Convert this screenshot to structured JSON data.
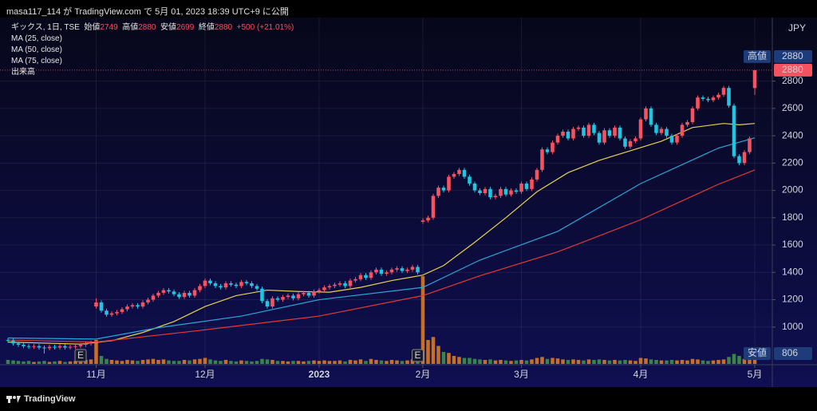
{
  "header": {
    "published": "masa117_114 が TradingView.com で 5月 01, 2023 18:39 UTC+9 に公開"
  },
  "footer": {
    "brand": "TradingView"
  },
  "chart_data": {
    "type": "candlestick",
    "symbol": "ギックス, 1日, TSE",
    "ohlc_labels": [
      "始値",
      "高値",
      "安値",
      "終値"
    ],
    "change_label": "+500 (+21.01%)",
    "indicator_labels": [
      "MA (25, close)",
      "MA (50, close)",
      "MA (75, close)",
      "出来高"
    ],
    "currency": "JPY",
    "up_color": "#f7525f",
    "down_color": "#22c5e0",
    "volume_up_color": "#e6801f",
    "volume_down_color": "#3f9a4a",
    "ylim": [
      730,
      3230
    ],
    "yticks": [
      1000,
      1200,
      1400,
      1600,
      1800,
      2000,
      2200,
      2400,
      2600,
      2800
    ],
    "xlim": [
      0,
      144
    ],
    "xticks": [
      {
        "value": 17,
        "label": "11月"
      },
      {
        "value": 38,
        "label": "12月"
      },
      {
        "value": 60,
        "label": "2023"
      },
      {
        "value": 80,
        "label": "2月"
      },
      {
        "value": 99,
        "label": "3月"
      },
      {
        "value": 122,
        "label": "4月"
      },
      {
        "value": 144,
        "label": "5月"
      }
    ],
    "grid": true,
    "high_marker": {
      "label": "高値",
      "value": 2880
    },
    "low_marker": {
      "label": "安値",
      "value": 806
    },
    "events": [
      {
        "x": 14,
        "label": "E"
      },
      {
        "x": 79,
        "label": "E"
      }
    ],
    "open": [
      905,
      900,
      880,
      870,
      860,
      855,
      860,
      850,
      845,
      855,
      850,
      860,
      850,
      855,
      860,
      870,
      880,
      1150,
      1180,
      1120,
      1090,
      1100,
      1110,
      1130,
      1150,
      1160,
      1150,
      1180,
      1200,
      1230,
      1250,
      1270,
      1260,
      1240,
      1220,
      1250,
      1230,
      1270,
      1300,
      1340,
      1320,
      1300,
      1290,
      1320,
      1310,
      1300,
      1330,
      1320,
      1300,
      1280,
      1190,
      1150,
      1210,
      1200,
      1220,
      1230,
      1210,
      1240,
      1250,
      1230,
      1260,
      1270,
      1290,
      1300,
      1310,
      1320,
      1300,
      1340,
      1350,
      1380,
      1360,
      1400,
      1420,
      1390,
      1400,
      1420,
      1430,
      1410,
      1420,
      1440,
      1770,
      1780,
      1800,
      1960,
      2020,
      2000,
      2100,
      2120,
      2150,
      2100,
      2050,
      2000,
      1980,
      2010,
      1950,
      1960,
      2010,
      1970,
      2000,
      1990,
      2050,
      2010,
      2080,
      2150,
      2300,
      2280,
      2350,
      2400,
      2430,
      2380,
      2450,
      2460,
      2400,
      2480,
      2420,
      2350,
      2440,
      2400,
      2460,
      2380,
      2320,
      2360,
      2380,
      2520,
      2600,
      2480,
      2420,
      2450,
      2400,
      2350,
      2400,
      2480,
      2500,
      2600,
      2680,
      2670,
      2660,
      2680,
      2700,
      2750,
      2620,
      2250,
      2200,
      2280,
      2749
    ],
    "high": [
      920,
      915,
      895,
      885,
      875,
      875,
      875,
      865,
      870,
      870,
      875,
      875,
      870,
      875,
      885,
      895,
      900,
      1210,
      1195,
      1135,
      1115,
      1125,
      1145,
      1165,
      1175,
      1175,
      1195,
      1215,
      1245,
      1265,
      1285,
      1285,
      1275,
      1255,
      1265,
      1265,
      1285,
      1315,
      1355,
      1355,
      1335,
      1315,
      1335,
      1335,
      1325,
      1345,
      1345,
      1335,
      1315,
      1295,
      1205,
      1225,
      1225,
      1235,
      1245,
      1245,
      1255,
      1265,
      1265,
      1275,
      1285,
      1305,
      1315,
      1325,
      1335,
      1335,
      1355,
      1365,
      1395,
      1395,
      1415,
      1435,
      1435,
      1415,
      1435,
      1445,
      1445,
      1435,
      1455,
      1455,
      1795,
      1815,
      1975,
      2035,
      2035,
      2115,
      2135,
      2165,
      2165,
      2115,
      2065,
      2015,
      2025,
      2025,
      1975,
      2025,
      2025,
      2015,
      2015,
      2065,
      2065,
      2095,
      2165,
      2315,
      2315,
      2365,
      2415,
      2445,
      2445,
      2465,
      2475,
      2475,
      2495,
      2495,
      2435,
      2455,
      2455,
      2475,
      2475,
      2395,
      2375,
      2395,
      2535,
      2615,
      2615,
      2495,
      2465,
      2465,
      2415,
      2415,
      2495,
      2515,
      2615,
      2695,
      2695,
      2685,
      2695,
      2715,
      2765,
      2765,
      2635,
      2265,
      2295,
      2395,
      2880
    ],
    "low": [
      885,
      865,
      855,
      845,
      840,
      840,
      835,
      806,
      830,
      835,
      835,
      835,
      835,
      840,
      845,
      855,
      865,
      1135,
      1105,
      1075,
      1075,
      1085,
      1095,
      1115,
      1135,
      1135,
      1135,
      1165,
      1185,
      1215,
      1235,
      1245,
      1225,
      1205,
      1205,
      1215,
      1215,
      1255,
      1285,
      1305,
      1285,
      1275,
      1275,
      1295,
      1285,
      1285,
      1305,
      1285,
      1265,
      1175,
      1135,
      1135,
      1185,
      1185,
      1205,
      1195,
      1195,
      1225,
      1215,
      1215,
      1245,
      1255,
      1275,
      1285,
      1295,
      1285,
      1285,
      1325,
      1335,
      1345,
      1345,
      1385,
      1375,
      1375,
      1385,
      1405,
      1395,
      1395,
      1405,
      1385,
      1755,
      1765,
      1785,
      1945,
      1985,
      1985,
      2085,
      2105,
      2085,
      2035,
      1985,
      1965,
      1965,
      1935,
      1935,
      1945,
      1955,
      1955,
      1975,
      1975,
      1995,
      1995,
      2065,
      2135,
      2265,
      2265,
      2335,
      2385,
      2365,
      2365,
      2435,
      2385,
      2385,
      2405,
      2335,
      2335,
      2385,
      2385,
      2365,
      2305,
      2305,
      2345,
      2365,
      2505,
      2465,
      2405,
      2405,
      2385,
      2335,
      2335,
      2385,
      2465,
      2485,
      2585,
      2655,
      2645,
      2645,
      2665,
      2685,
      2605,
      2235,
      2185,
      2185,
      2265,
      2699
    ],
    "close": [
      900,
      880,
      870,
      860,
      855,
      860,
      850,
      845,
      855,
      850,
      860,
      850,
      855,
      860,
      870,
      880,
      885,
      1180,
      1120,
      1090,
      1100,
      1110,
      1130,
      1150,
      1160,
      1150,
      1180,
      1200,
      1230,
      1250,
      1270,
      1260,
      1240,
      1220,
      1250,
      1230,
      1270,
      1300,
      1340,
      1320,
      1300,
      1290,
      1320,
      1310,
      1300,
      1330,
      1320,
      1300,
      1280,
      1190,
      1150,
      1210,
      1200,
      1220,
      1230,
      1210,
      1240,
      1250,
      1230,
      1260,
      1270,
      1290,
      1300,
      1310,
      1320,
      1300,
      1340,
      1350,
      1380,
      1360,
      1400,
      1420,
      1390,
      1400,
      1420,
      1430,
      1410,
      1420,
      1440,
      1400,
      1780,
      1800,
      1960,
      2020,
      2000,
      2100,
      2120,
      2150,
      2100,
      2050,
      2000,
      1980,
      2010,
      1950,
      1960,
      2010,
      1970,
      2000,
      1990,
      2050,
      2010,
      2080,
      2150,
      2300,
      2280,
      2350,
      2400,
      2430,
      2380,
      2450,
      2460,
      2400,
      2480,
      2420,
      2350,
      2440,
      2400,
      2460,
      2380,
      2320,
      2360,
      2380,
      2520,
      2600,
      2480,
      2420,
      2450,
      2400,
      2350,
      2400,
      2480,
      2500,
      2600,
      2680,
      2670,
      2660,
      2680,
      2700,
      2750,
      2620,
      2250,
      2200,
      2280,
      2380,
      2880
    ],
    "volume": [
      40,
      35,
      30,
      25,
      30,
      20,
      25,
      30,
      20,
      25,
      30,
      20,
      25,
      30,
      35,
      40,
      45,
      240,
      80,
      50,
      40,
      35,
      30,
      40,
      35,
      30,
      40,
      45,
      50,
      40,
      45,
      35,
      30,
      30,
      40,
      35,
      45,
      50,
      60,
      45,
      35,
      30,
      40,
      30,
      25,
      35,
      30,
      25,
      30,
      50,
      45,
      40,
      30,
      30,
      25,
      30,
      30,
      25,
      30,
      35,
      30,
      35,
      30,
      30,
      35,
      25,
      40,
      35,
      45,
      30,
      50,
      40,
      35,
      30,
      40,
      35,
      30,
      35,
      45,
      60,
      880,
      240,
      270,
      180,
      120,
      110,
      80,
      70,
      60,
      60,
      50,
      45,
      40,
      45,
      35,
      40,
      35,
      30,
      35,
      40,
      35,
      45,
      60,
      70,
      50,
      60,
      55,
      45,
      40,
      45,
      40,
      35,
      45,
      40,
      45,
      40,
      35,
      40,
      35,
      40,
      35,
      30,
      60,
      55,
      45,
      40,
      35,
      35,
      40,
      35,
      40,
      35,
      50,
      45,
      35,
      30,
      35,
      40,
      45,
      70,
      100,
      80,
      50,
      45,
      120
    ],
    "volume_lim": [
      0,
      1000
    ],
    "series": [
      {
        "name": "MA (25, close)",
        "color": "#e8d24a",
        "x": [
          0,
          14,
          20,
          26,
          32,
          38,
          44,
          50,
          56,
          62,
          68,
          74,
          80,
          84,
          90,
          96,
          102,
          108,
          114,
          120,
          126,
          132,
          138,
          141,
          144
        ],
        "values": [
          890,
          875,
          900,
          960,
          1040,
          1150,
          1230,
          1270,
          1260,
          1255,
          1290,
          1340,
          1380,
          1450,
          1620,
          1800,
          1990,
          2130,
          2220,
          2290,
          2360,
          2460,
          2490,
          2480,
          2490
        ]
      },
      {
        "name": "MA (50, close)",
        "color": "#2aa7d8",
        "x": [
          0,
          17,
          29,
          45,
          60,
          80,
          91,
          106,
          122,
          137,
          144
        ],
        "values": [
          920,
          912,
          995,
          1080,
          1200,
          1290,
          1490,
          1700,
          2050,
          2310,
          2385
        ]
      },
      {
        "name": "MA (75, close)",
        "color": "#e53935",
        "x": [
          0,
          17,
          37,
          60,
          80,
          91,
          106,
          122,
          137,
          144
        ],
        "values": [
          905,
          890,
          975,
          1080,
          1230,
          1375,
          1550,
          1785,
          2045,
          2150
        ]
      }
    ]
  }
}
